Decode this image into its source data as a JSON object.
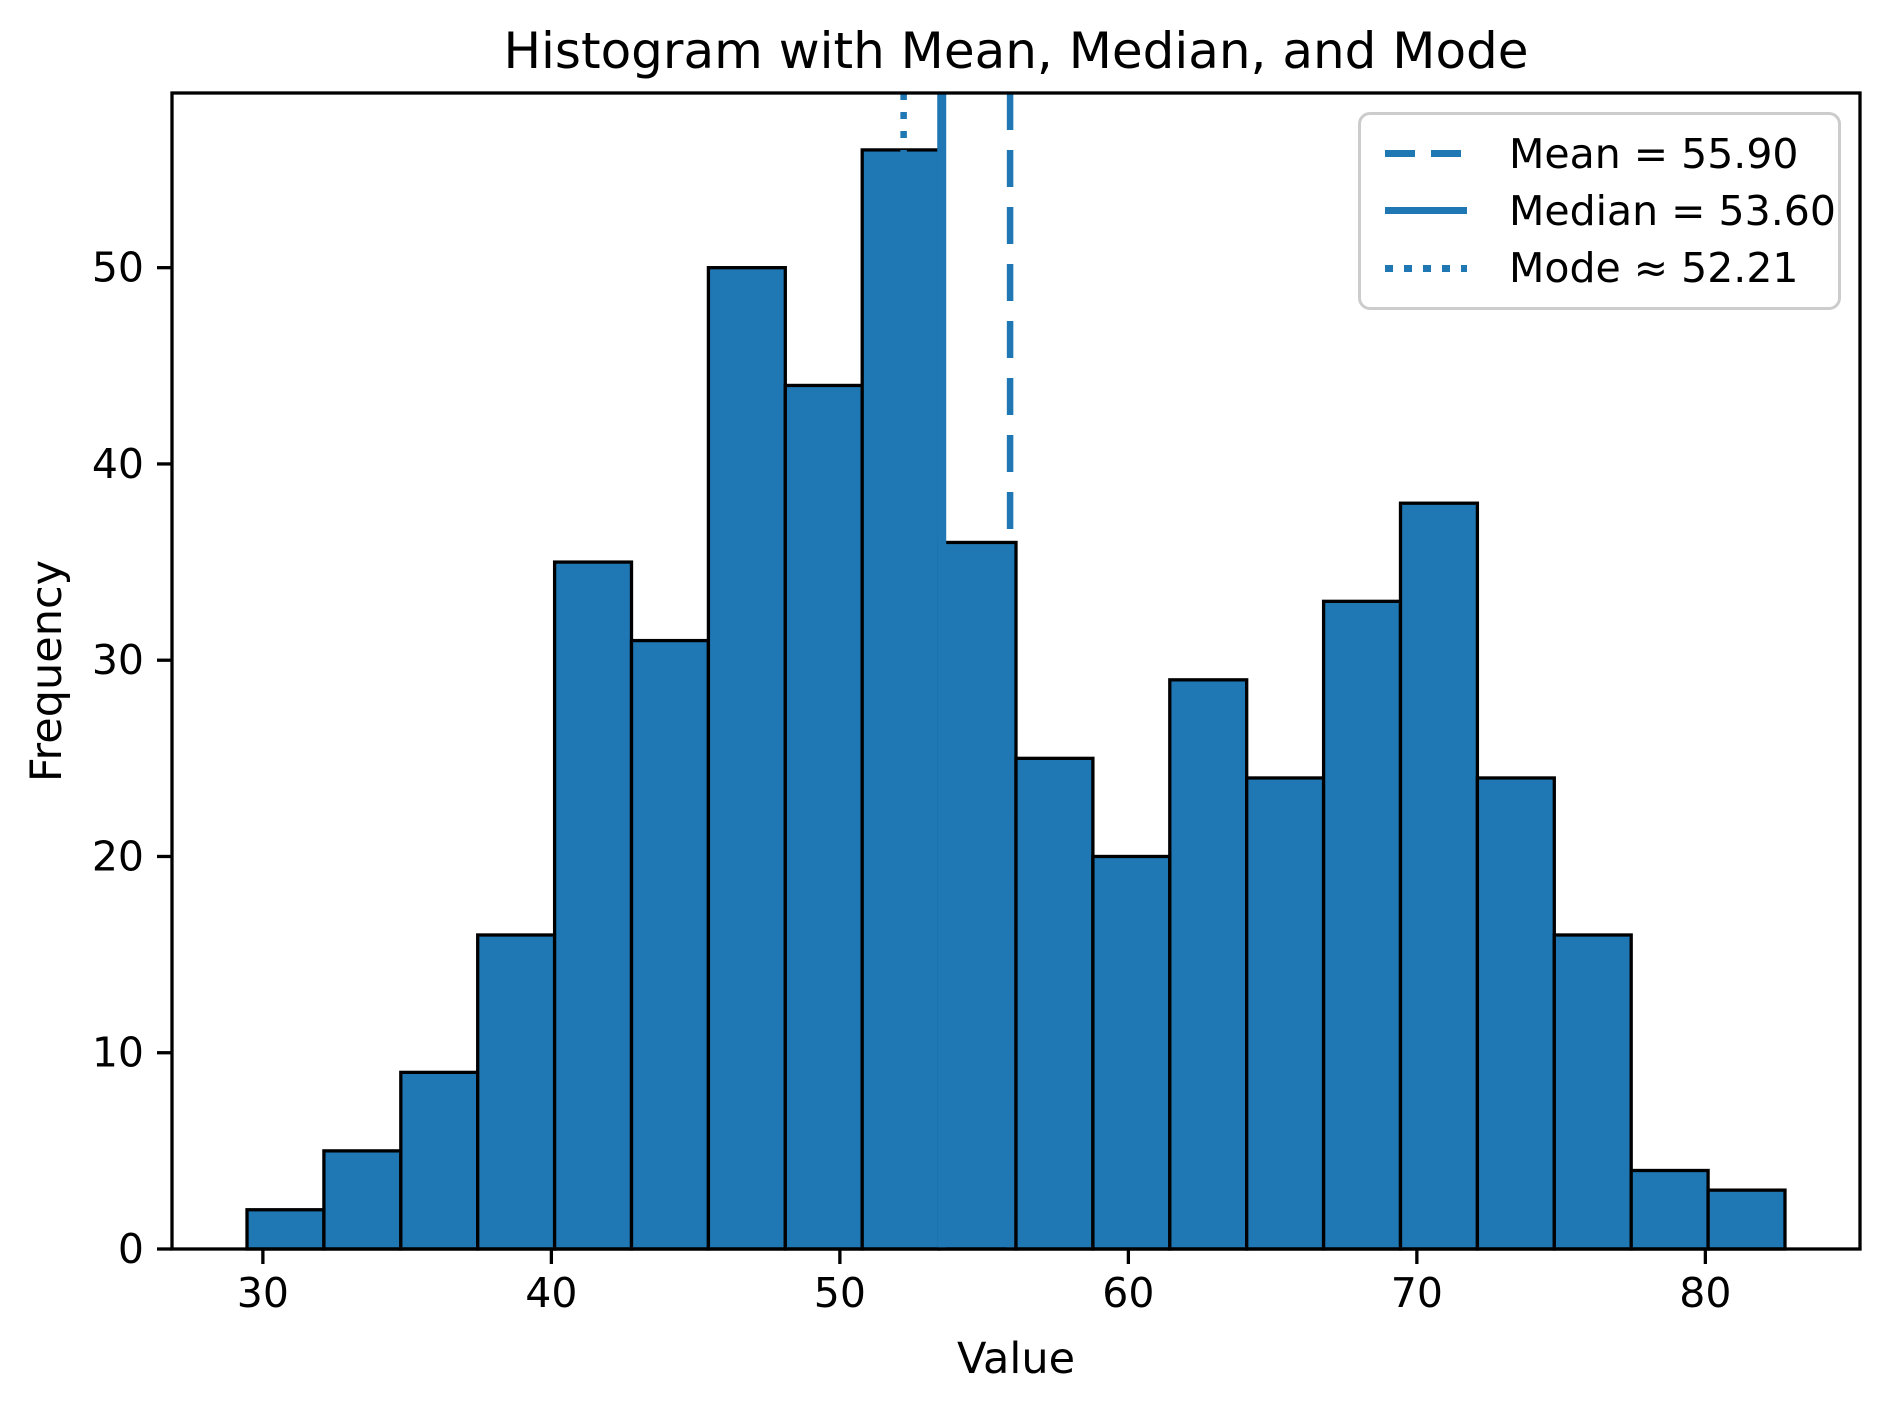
{
  "figure": {
    "title": "Histogram with Mean, Median, and Mode",
    "xlabel": "Value",
    "ylabel": "Frequency"
  },
  "legend": {
    "position": "upper-right",
    "border_color": "#cccccc",
    "items": [
      {
        "label": "Mean = 55.90",
        "style": "dashed"
      },
      {
        "label": "Median = 53.60",
        "style": "solid"
      },
      {
        "label": "Mode ≈ 52.21",
        "style": "dotted"
      }
    ]
  },
  "chart_data": {
    "type": "bar",
    "subtype": "histogram",
    "title": "Histogram with Mean, Median, and Mode",
    "xlabel": "Value",
    "ylabel": "Frequency",
    "bin_start": 29.45,
    "bin_width": 2.6655,
    "counts": [
      2,
      5,
      9,
      16,
      35,
      31,
      50,
      44,
      56,
      36,
      25,
      20,
      29,
      24,
      33,
      38,
      24,
      16,
      4,
      3
    ],
    "n_total": 500,
    "x_ticks": [
      30,
      40,
      50,
      60,
      70,
      80
    ],
    "y_ticks": [
      0,
      10,
      20,
      30,
      40,
      50
    ],
    "xlim": [
      26.85,
      85.36
    ],
    "ylim": [
      0,
      58.9
    ],
    "grid": false,
    "legend_position": "upper right",
    "stats": {
      "mean": 55.9,
      "median": 53.6,
      "mode": 52.21
    },
    "lines": [
      {
        "stat": "mean",
        "value": 55.9,
        "style": "dashed"
      },
      {
        "stat": "median",
        "value": 53.6,
        "style": "solid"
      },
      {
        "stat": "mode",
        "value": 52.21,
        "style": "dotted"
      }
    ],
    "colors": {
      "bar_fill": "#1f77b4",
      "bar_edge": "#000000",
      "stat_line": "#1f77b4",
      "axis": "#000000",
      "text": "#000000",
      "background": "#ffffff"
    }
  }
}
